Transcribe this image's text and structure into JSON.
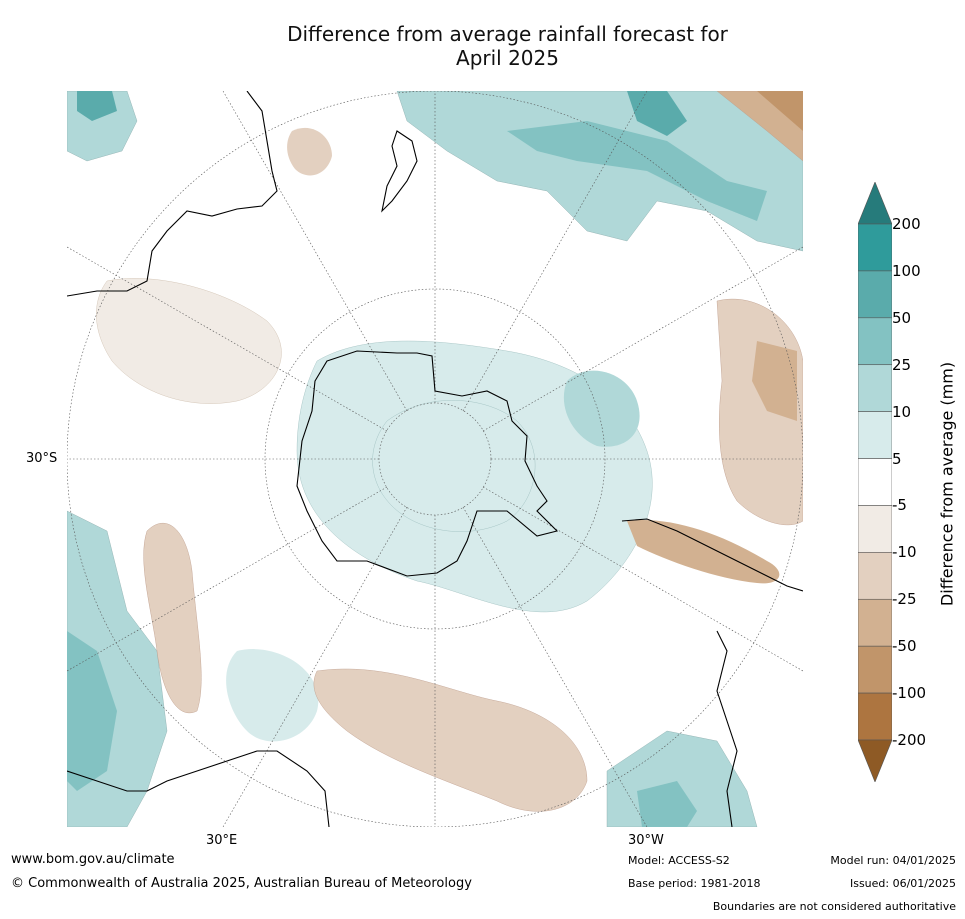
{
  "title_line1": "Difference from average rainfall forecast for",
  "title_line2": "April 2025",
  "map": {
    "projection": "south-polar stereographic",
    "lat_label": "30°S",
    "lon_labels": {
      "e30": "30°E",
      "w30": "30°W"
    },
    "colors": {
      "ocean_bg": "#ffffff",
      "coast": "#000000",
      "graticule": "#555555"
    }
  },
  "colorbar": {
    "title": "Difference from average (mm)",
    "tick_labels": [
      "200",
      "100",
      "50",
      "25",
      "10",
      "5",
      "-5",
      "-10",
      "-25",
      "-50",
      "-100",
      "-200"
    ],
    "bins": [
      {
        "label": "above 200",
        "color": "#267b7b"
      },
      {
        "label": "100 to 200",
        "color": "#2f9b9b"
      },
      {
        "label": "50 to 100",
        "color": "#5aabab"
      },
      {
        "label": "25 to 50",
        "color": "#83c2c2"
      },
      {
        "label": "10 to 25",
        "color": "#b0d8d8"
      },
      {
        "label": "5 to 10",
        "color": "#d7ebeb"
      },
      {
        "label": "-5 to 5",
        "color": "#ffffff"
      },
      {
        "label": "-10 to -5",
        "color": "#f1ebe5"
      },
      {
        "label": "-25 to -10",
        "color": "#e3d0c0"
      },
      {
        "label": "-50 to -25",
        "color": "#d2b191"
      },
      {
        "label": "-100 to -50",
        "color": "#c1956a"
      },
      {
        "label": "-200 to -100",
        "color": "#ad7540"
      },
      {
        "label": "below -200",
        "color": "#8e5a25"
      }
    ]
  },
  "footer": {
    "website": "www.bom.gov.au/climate",
    "copyright": "© Commonwealth of Australia 2025, Australian Bureau of Meteorology",
    "model": "Model: ACCESS-S2",
    "base_period": "Base period: 1981-2018",
    "model_run": "Model run: 04/01/2025",
    "issued": "Issued: 06/01/2025",
    "disclaimer": "Boundaries are not considered authoritative"
  }
}
